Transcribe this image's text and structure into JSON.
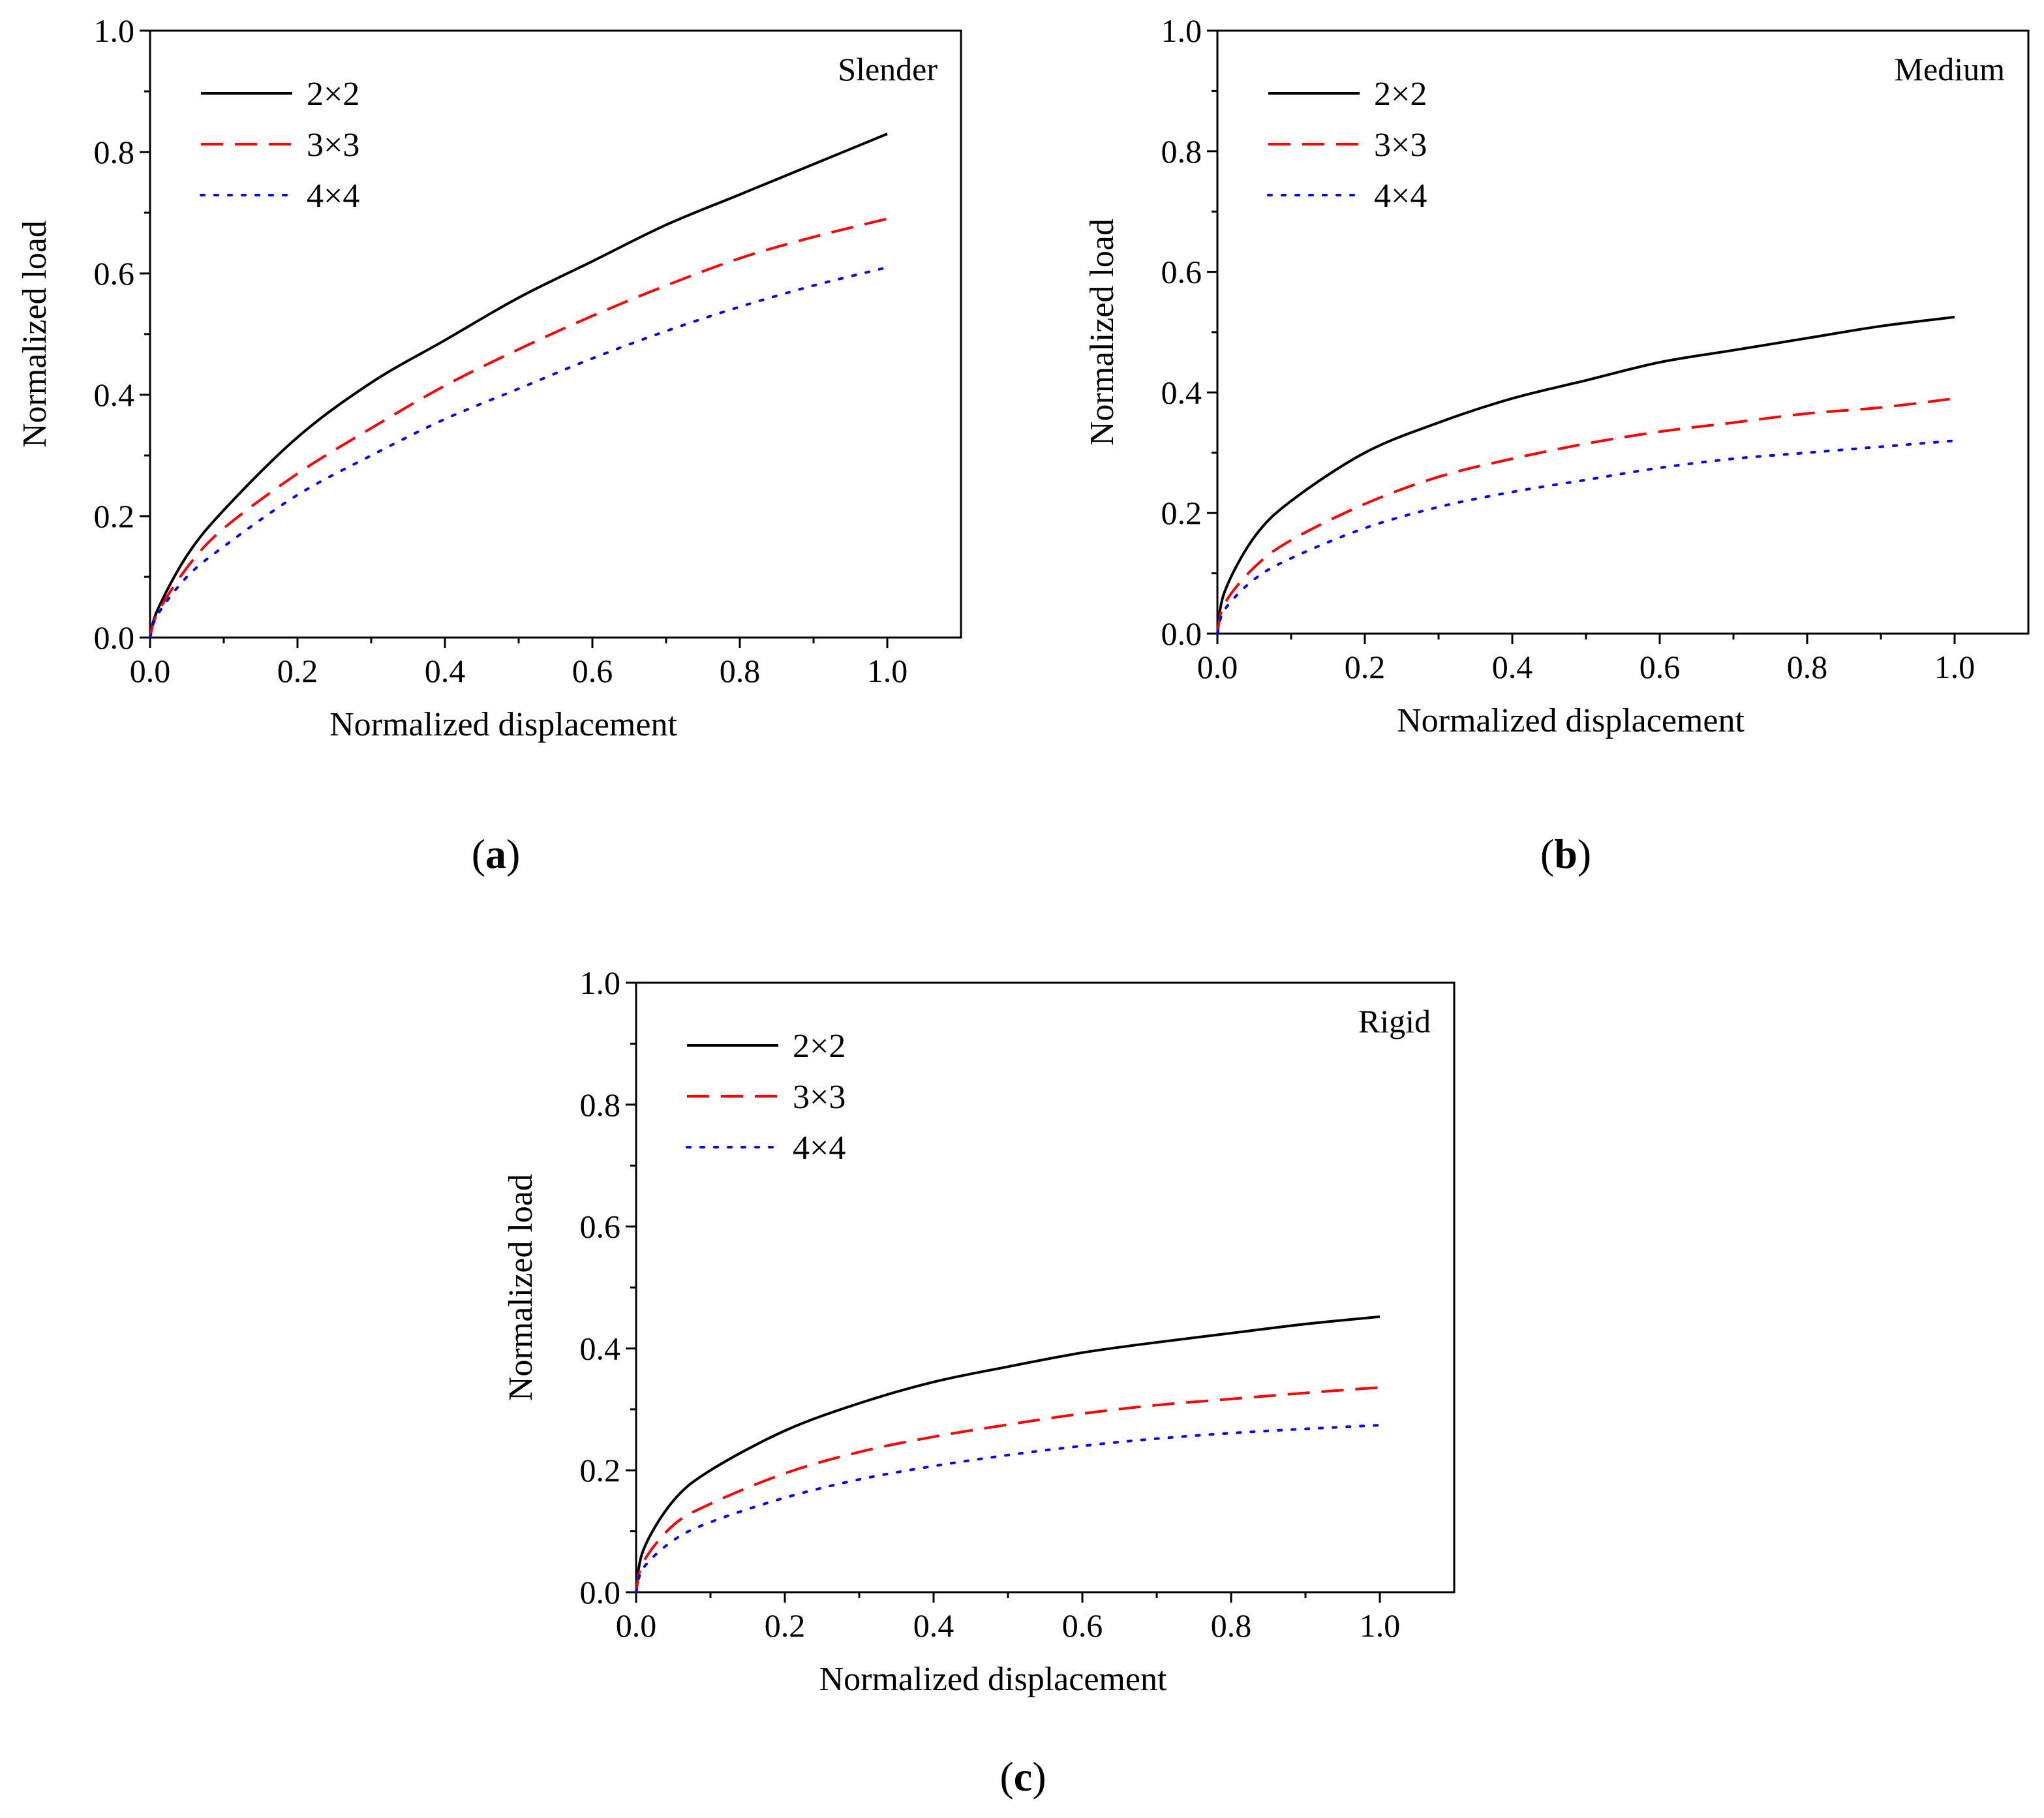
{
  "figure": {
    "captions": [
      "(a)",
      "(b)",
      "(c)"
    ],
    "series_colors": {
      "2×2": "#000000",
      "3×3": "#ff0000",
      "4×4": "#0000ff"
    }
  },
  "chart_data": [
    {
      "type": "line",
      "panel": "(a)",
      "annotation": "Slender",
      "xlabel": "Normalized displacement",
      "ylabel": "Normalized load",
      "xlim": [
        0.0,
        1.1
      ],
      "ylim": [
        0.0,
        1.0
      ],
      "xticks": [
        "0.0",
        "0.2",
        "0.4",
        "0.6",
        "0.8",
        "1.0"
      ],
      "yticks": [
        "0.0",
        "0.2",
        "0.4",
        "0.6",
        "0.8",
        "1.0"
      ],
      "grid": false,
      "legend": "top-left",
      "x": [
        0.0,
        0.01,
        0.05,
        0.1,
        0.2,
        0.3,
        0.4,
        0.5,
        0.6,
        0.7,
        0.8,
        0.9,
        1.0
      ],
      "series": [
        {
          "name": "2×2",
          "style": "solid",
          "values": [
            0.0,
            0.045,
            0.135,
            0.21,
            0.33,
            0.42,
            0.49,
            0.56,
            0.62,
            0.68,
            0.73,
            0.78,
            0.83
          ]
        },
        {
          "name": "3×3",
          "style": "dashed",
          "values": [
            0.0,
            0.04,
            0.115,
            0.18,
            0.27,
            0.345,
            0.415,
            0.475,
            0.53,
            0.58,
            0.625,
            0.66,
            0.69
          ]
        },
        {
          "name": "4×4",
          "style": "dotted",
          "values": [
            0.0,
            0.037,
            0.1,
            0.15,
            0.235,
            0.3,
            0.36,
            0.41,
            0.46,
            0.505,
            0.545,
            0.58,
            0.61
          ]
        }
      ]
    },
    {
      "type": "line",
      "panel": "(b)",
      "annotation": "Medium",
      "xlabel": "Normalized displacement",
      "ylabel": "Normalized load",
      "xlim": [
        0.0,
        1.1
      ],
      "ylim": [
        0.0,
        1.0
      ],
      "xticks": [
        "0.0",
        "0.2",
        "0.4",
        "0.6",
        "0.8",
        "1.0"
      ],
      "yticks": [
        "0.0",
        "0.2",
        "0.4",
        "0.6",
        "0.8",
        "1.0"
      ],
      "grid": false,
      "legend": "top-left",
      "x": [
        0.0,
        0.01,
        0.05,
        0.1,
        0.2,
        0.3,
        0.4,
        0.5,
        0.6,
        0.7,
        0.8,
        0.9,
        1.0
      ],
      "series": [
        {
          "name": "2×2",
          "style": "solid",
          "values": [
            0.0,
            0.07,
            0.16,
            0.22,
            0.3,
            0.35,
            0.39,
            0.42,
            0.45,
            0.47,
            0.49,
            0.51,
            0.525
          ]
        },
        {
          "name": "3×3",
          "style": "dashed",
          "values": [
            0.0,
            0.05,
            0.11,
            0.155,
            0.215,
            0.26,
            0.29,
            0.315,
            0.335,
            0.35,
            0.365,
            0.375,
            0.39
          ]
        },
        {
          "name": "4×4",
          "style": "dotted",
          "values": [
            0.0,
            0.04,
            0.09,
            0.125,
            0.175,
            0.21,
            0.235,
            0.255,
            0.275,
            0.29,
            0.3,
            0.31,
            0.32
          ]
        }
      ]
    },
    {
      "type": "line",
      "panel": "(c)",
      "annotation": "Rigid",
      "xlabel": "Normalized displacement",
      "ylabel": "Normalized load",
      "xlim": [
        0.0,
        1.1
      ],
      "ylim": [
        0.0,
        1.0
      ],
      "xticks": [
        "0.0",
        "0.2",
        "0.4",
        "0.6",
        "0.8",
        "1.0"
      ],
      "yticks": [
        "0.0",
        "0.2",
        "0.4",
        "0.6",
        "0.8",
        "1.0"
      ],
      "grid": false,
      "legend": "top-left",
      "x": [
        0.0,
        0.01,
        0.05,
        0.1,
        0.2,
        0.3,
        0.4,
        0.5,
        0.6,
        0.7,
        0.8,
        0.9,
        1.0
      ],
      "series": [
        {
          "name": "2×2",
          "style": "solid",
          "values": [
            0.0,
            0.07,
            0.15,
            0.2,
            0.265,
            0.31,
            0.345,
            0.37,
            0.393,
            0.41,
            0.425,
            0.44,
            0.452
          ]
        },
        {
          "name": "3×3",
          "style": "dashed",
          "values": [
            0.0,
            0.05,
            0.11,
            0.145,
            0.195,
            0.23,
            0.255,
            0.275,
            0.293,
            0.307,
            0.317,
            0.327,
            0.336
          ]
        },
        {
          "name": "4×4",
          "style": "dotted",
          "values": [
            0.0,
            0.04,
            0.085,
            0.115,
            0.155,
            0.185,
            0.207,
            0.225,
            0.24,
            0.252,
            0.261,
            0.268,
            0.274
          ]
        }
      ]
    }
  ]
}
